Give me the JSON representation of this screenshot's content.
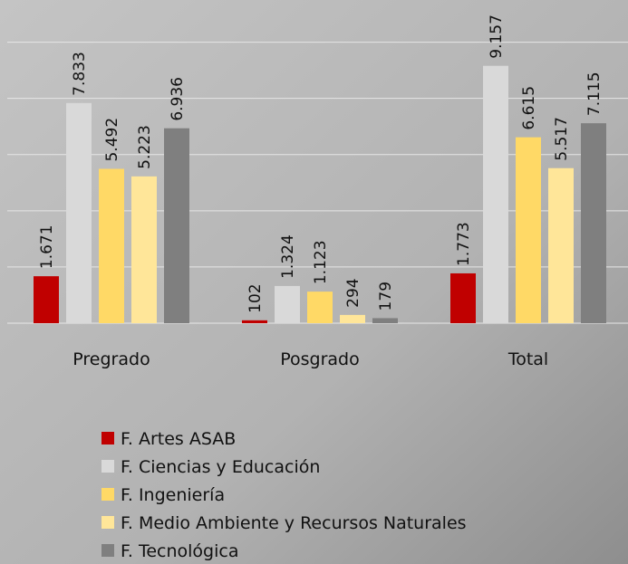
{
  "chart_data": {
    "type": "bar",
    "categories": [
      "Pregrado",
      "Posgrado",
      "Total"
    ],
    "series": [
      {
        "name": "F. Artes ASAB",
        "color": "#c00000",
        "values": [
          1671,
          102,
          1773
        ],
        "value_labels": [
          "1.671",
          "102",
          "1.773"
        ]
      },
      {
        "name": "F. Ciencias y Educación",
        "color": "#d9d9d9",
        "values": [
          7833,
          1324,
          9157
        ],
        "value_labels": [
          "7.833",
          "1.324",
          "9.157"
        ]
      },
      {
        "name": "F. Ingeniería",
        "color": "#ffd966",
        "values": [
          5492,
          1123,
          6615
        ],
        "value_labels": [
          "5.492",
          "1.123",
          "6.615"
        ]
      },
      {
        "name": "F. Medio Ambiente y Recursos Naturales",
        "color": "#ffe699",
        "values": [
          5223,
          294,
          5517
        ],
        "value_labels": [
          "5.223",
          "294",
          "5.517"
        ]
      },
      {
        "name": "F. Tecnológica",
        "color": "#7f7f7f",
        "values": [
          6936,
          179,
          7115
        ],
        "value_labels": [
          "6.936",
          "179",
          "7.115"
        ]
      }
    ],
    "ylim": [
      0,
      11500
    ],
    "yticks": [
      2000,
      4000,
      6000,
      8000,
      10000
    ],
    "grid": true,
    "legend": "bottom"
  }
}
